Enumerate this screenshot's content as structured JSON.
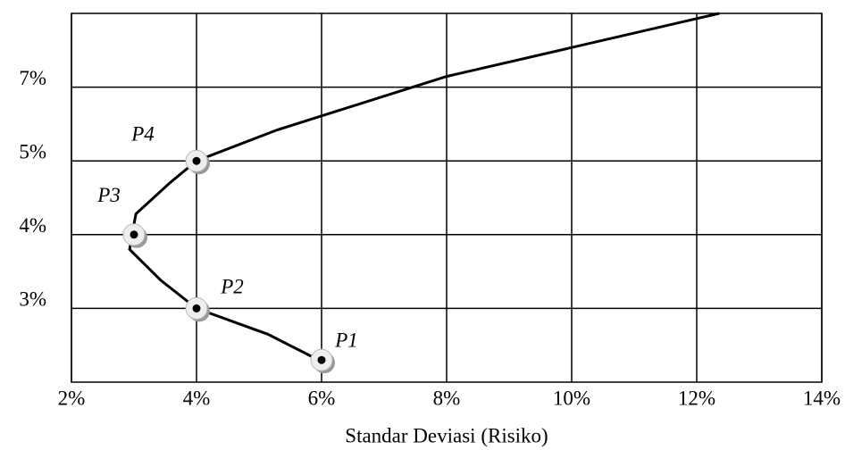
{
  "chart_data": {
    "type": "line",
    "x_label": "Standar Deviasi (Risiko)",
    "xlim": [
      2,
      14
    ],
    "xticks": [
      {
        "value": 2,
        "label": "2%"
      },
      {
        "value": 4,
        "label": "4%"
      },
      {
        "value": 6,
        "label": "6%"
      },
      {
        "value": 8,
        "label": "8%"
      },
      {
        "value": 10,
        "label": "10%"
      },
      {
        "value": 12,
        "label": "12%"
      },
      {
        "value": 14,
        "label": "14%"
      }
    ],
    "ylim": [
      2,
      9
    ],
    "yticks": [
      {
        "value": 3,
        "label": "3%"
      },
      {
        "value": 4,
        "label": "4%"
      },
      {
        "value": 5,
        "label": "5%"
      },
      {
        "value": 7,
        "label": "7%"
      }
    ],
    "grid": true,
    "frontier": {
      "color": "#000000",
      "x": [
        6.0,
        5.14,
        4.0,
        3.43,
        2.93,
        2.97,
        3.03,
        3.57,
        4.0,
        5.29,
        8.0,
        12.36
      ],
      "values": [
        2.28,
        2.65,
        3.0,
        3.38,
        3.8,
        4.0,
        4.28,
        4.7,
        5.0,
        5.84,
        7.29,
        9.0
      ]
    },
    "portfolios": {
      "labels": [
        "P1",
        "P2",
        "P3",
        "P4"
      ],
      "x": [
        6,
        4,
        3,
        4
      ],
      "values": [
        2.3,
        3,
        4,
        5
      ]
    }
  }
}
